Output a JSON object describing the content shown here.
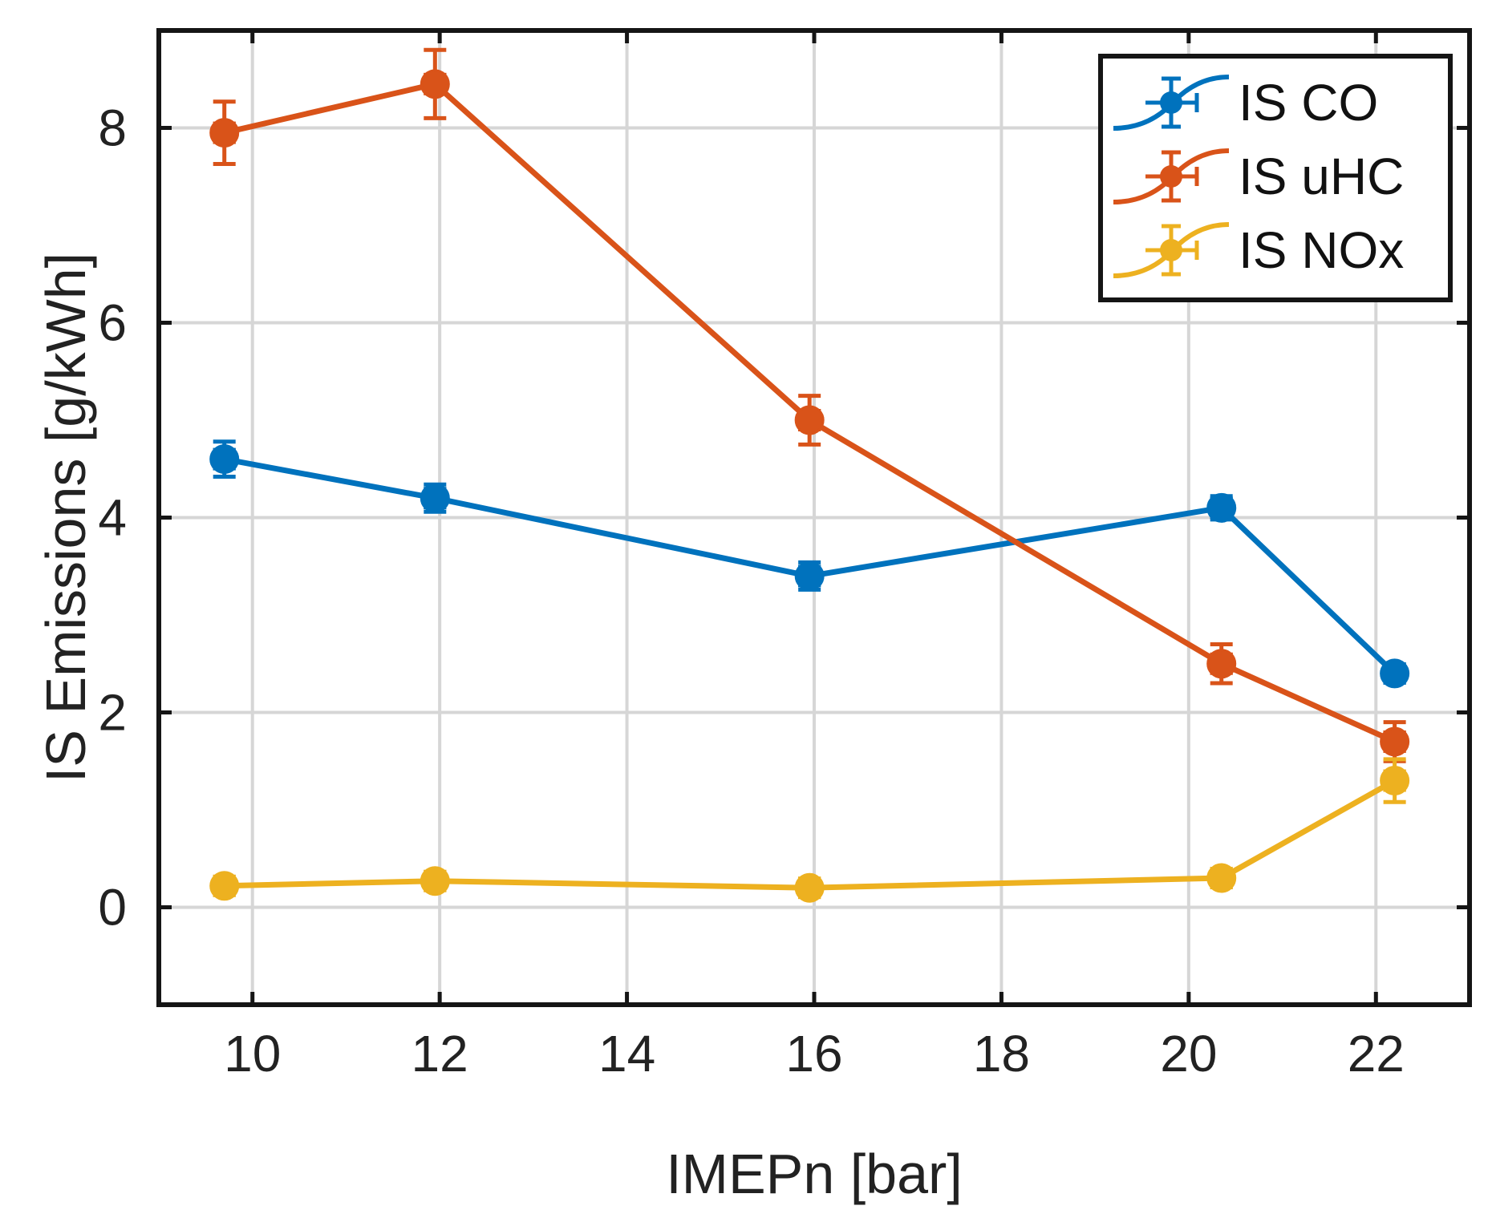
{
  "chart_data": {
    "type": "line",
    "title": "",
    "xlabel": "IMEPn [bar]",
    "ylabel": "IS Emissions [g/kWh]",
    "xlim": [
      9,
      23
    ],
    "ylim": [
      -1,
      9
    ],
    "xticks": [
      10,
      12,
      14,
      16,
      18,
      20,
      22
    ],
    "yticks": [
      0,
      2,
      4,
      6,
      8
    ],
    "grid": true,
    "legend_position": "top-right",
    "series": [
      {
        "name": "IS CO",
        "color": "#0072BD",
        "x": [
          9.7,
          11.95,
          15.95,
          20.35,
          22.2
        ],
        "y": [
          4.6,
          4.2,
          3.4,
          4.1,
          2.4
        ],
        "y_err": [
          0.18,
          0.14,
          0.14,
          0.12,
          0.08
        ],
        "x_err": [
          0.1,
          0.1,
          0.1,
          0.1,
          0.1
        ]
      },
      {
        "name": "IS uHC",
        "color": "#D95319",
        "x": [
          9.7,
          11.95,
          15.95,
          20.35,
          22.2
        ],
        "y": [
          7.95,
          8.45,
          5.0,
          2.5,
          1.7
        ],
        "y_err": [
          0.32,
          0.35,
          0.25,
          0.2,
          0.2
        ],
        "x_err": [
          0.1,
          0.1,
          0.1,
          0.1,
          0.1
        ]
      },
      {
        "name": "IS NOx",
        "color": "#EDB120",
        "x": [
          9.7,
          11.95,
          15.95,
          20.35,
          22.2
        ],
        "y": [
          0.22,
          0.27,
          0.2,
          0.3,
          1.3
        ],
        "y_err": [
          0.04,
          0.04,
          0.04,
          0.04,
          0.22
        ],
        "x_err": [
          0.1,
          0.1,
          0.1,
          0.1,
          0.1
        ]
      }
    ]
  }
}
